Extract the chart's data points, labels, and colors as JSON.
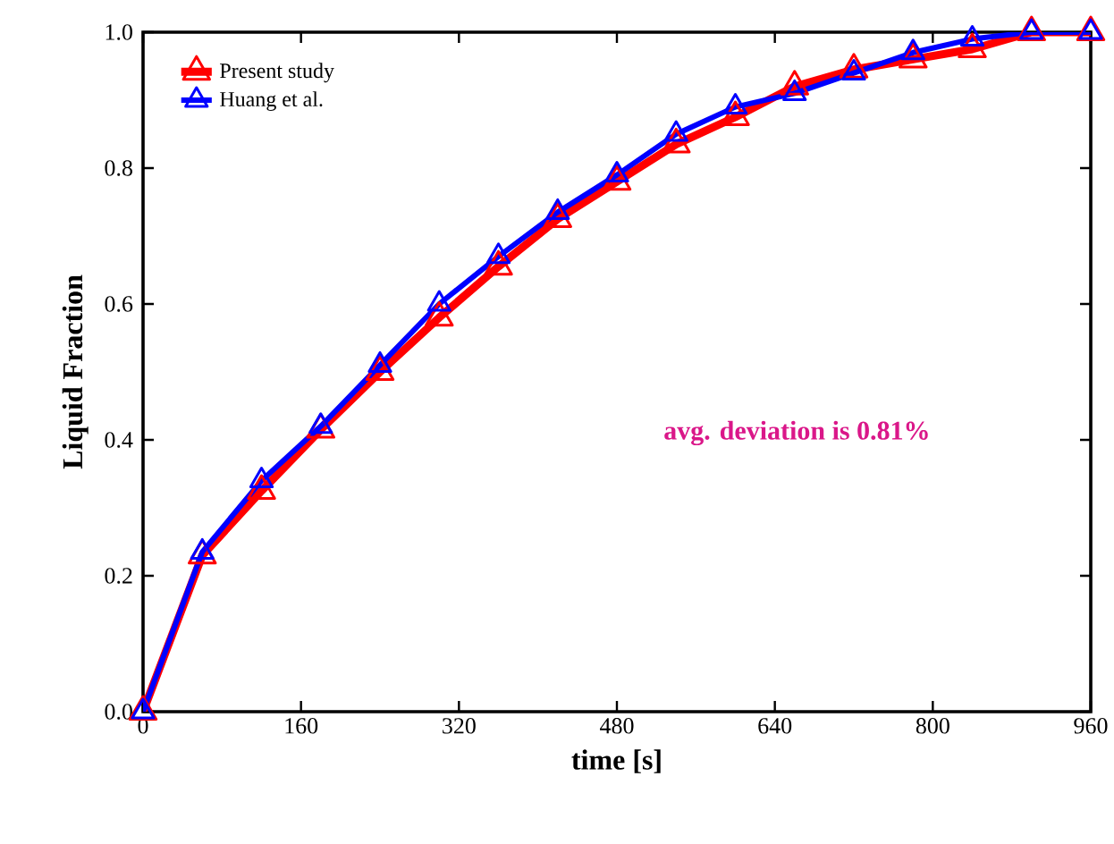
{
  "chart_data": {
    "type": "line",
    "xlabel": "time [s]",
    "ylabel": "Liquid Fraction",
    "x": [
      0,
      60,
      120,
      180,
      240,
      300,
      360,
      420,
      480,
      540,
      600,
      660,
      720,
      780,
      840,
      900,
      960
    ],
    "series": [
      {
        "name": "Present study",
        "color": "#ff0000",
        "values": [
          0,
          0.23,
          0.325,
          0.415,
          0.5,
          0.58,
          0.655,
          0.725,
          0.78,
          0.835,
          0.875,
          0.92,
          0.945,
          0.96,
          0.975,
          1.0,
          1.0
        ]
      },
      {
        "name": "Huang et al.",
        "color": "#0000ff",
        "values": [
          0,
          0.235,
          0.34,
          0.42,
          0.51,
          0.6,
          0.67,
          0.735,
          0.79,
          0.85,
          0.89,
          0.91,
          0.94,
          0.97,
          0.99,
          1.0,
          1.0
        ]
      }
    ],
    "xlim": [
      0,
      960
    ],
    "ylim": [
      0,
      1
    ],
    "xticks": [
      0,
      160,
      320,
      480,
      640,
      800,
      960
    ],
    "yticks": [
      {
        "value": 0,
        "label": "0.0"
      },
      {
        "value": 0.2,
        "label": "0.2"
      },
      {
        "value": 0.4,
        "label": "0.4"
      },
      {
        "value": 0.6,
        "label": "0.6"
      },
      {
        "value": 0.8,
        "label": "0.8"
      },
      {
        "value": 1,
        "label": "1.0"
      }
    ],
    "annotations": [
      "avg. deviation is 0.81%"
    ],
    "legend": "top left",
    "marker": "triangle",
    "line_style": "solid",
    "grid": false
  }
}
